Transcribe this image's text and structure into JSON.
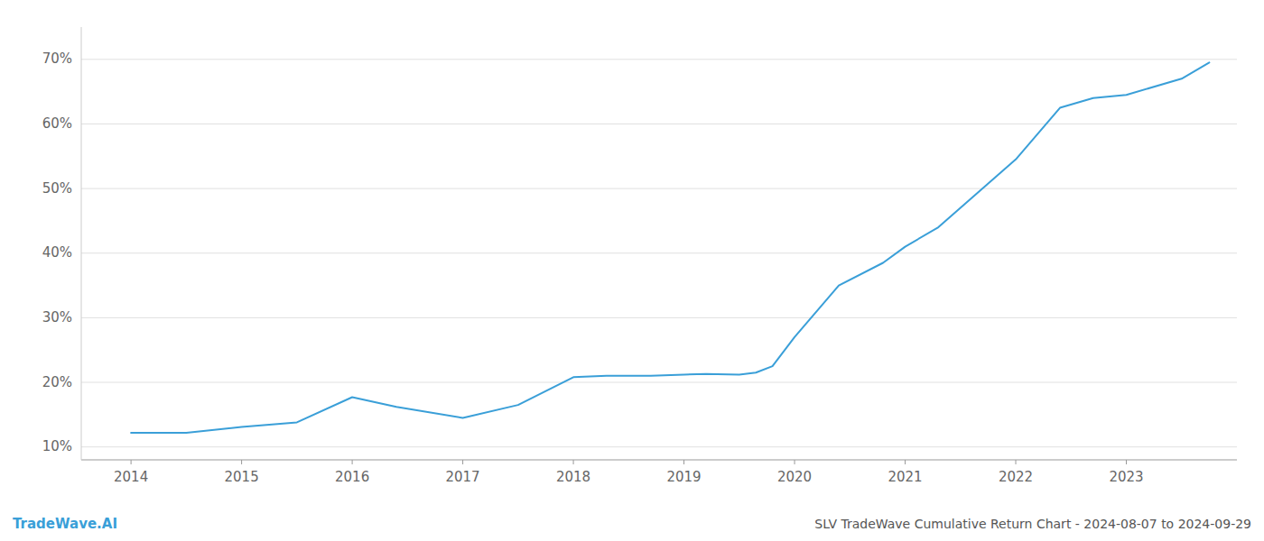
{
  "chart_data": {
    "type": "line",
    "title": "SLV TradeWave Cumulative Return Chart - 2024-08-07 to 2024-09-29",
    "annotations": [
      "TradeWave.AI"
    ],
    "x": [
      2014.0,
      2014.5,
      2015.0,
      2015.5,
      2016.0,
      2016.4,
      2017.0,
      2017.5,
      2018.0,
      2018.3,
      2018.7,
      2019.0,
      2019.2,
      2019.5,
      2019.65,
      2019.8,
      2020.0,
      2020.4,
      2020.8,
      2021.0,
      2021.3,
      2021.7,
      2022.0,
      2022.4,
      2022.7,
      2023.0,
      2023.5,
      2023.75
    ],
    "values": [
      12.2,
      12.2,
      13.1,
      13.8,
      17.7,
      16.2,
      14.5,
      16.5,
      20.8,
      21.0,
      21.0,
      21.2,
      21.3,
      21.2,
      21.5,
      22.5,
      27.0,
      35.0,
      38.5,
      41.0,
      44.0,
      50.0,
      54.5,
      62.5,
      64.0,
      64.5,
      67.0,
      69.5
    ],
    "color": "#3a9fd8",
    "xlim": [
      2013.55,
      2024.0
    ],
    "xticks": [
      2014,
      2015,
      2016,
      2017,
      2018,
      2019,
      2020,
      2021,
      2022,
      2023
    ],
    "ylim": [
      8,
      75
    ],
    "yticks": [
      {
        "value": 10,
        "label": "10%"
      },
      {
        "value": 20,
        "label": "20%"
      },
      {
        "value": 30,
        "label": "30%"
      },
      {
        "value": 40,
        "label": "40%"
      },
      {
        "value": 50,
        "label": "50%"
      },
      {
        "value": 60,
        "label": "60%"
      },
      {
        "value": 70,
        "label": "70%"
      }
    ],
    "grid": true
  }
}
